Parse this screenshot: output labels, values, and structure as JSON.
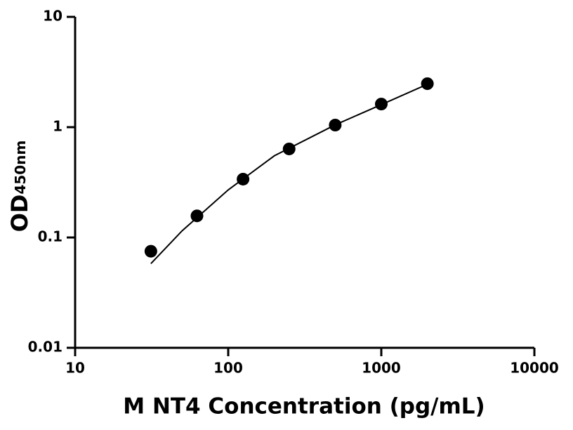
{
  "chart_data": {
    "type": "scatter",
    "x_label": "M NT4 Concentration (pg/mL)",
    "y_label": "OD",
    "y_label_sub": "450nm",
    "x": [
      31.25,
      62.5,
      125,
      250,
      500,
      1000,
      2000
    ],
    "values": [
      0.075,
      0.157,
      0.338,
      0.635,
      1.045,
      1.62,
      2.48
    ],
    "color": "#000000",
    "fit": {
      "x": [
        31.25,
        50,
        100,
        200,
        500,
        1000,
        2000
      ],
      "values": [
        0.058,
        0.115,
        0.27,
        0.55,
        1.05,
        1.6,
        2.45
      ],
      "color": "#000000"
    },
    "xlog": true,
    "ylog": true,
    "xlim": [
      10,
      10000
    ],
    "ylim": [
      0.01,
      10
    ],
    "xticks": [
      10,
      100,
      1000,
      10000
    ],
    "yticks": [
      10,
      1,
      0.1,
      0.01
    ]
  }
}
